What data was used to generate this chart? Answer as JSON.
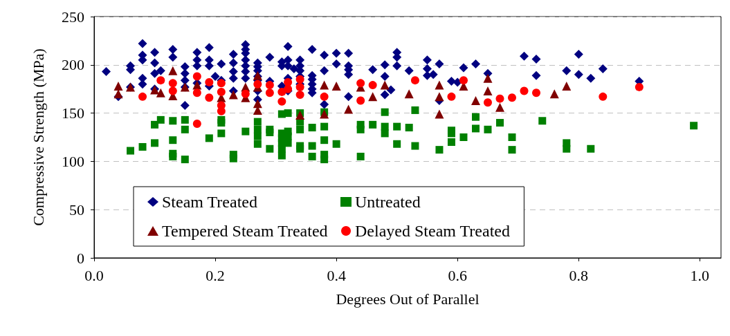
{
  "chart_data": {
    "type": "scatter",
    "xlabel": "Degrees Out of Parallel",
    "ylabel": "Compressive Strength (MPa)",
    "xlim": [
      0,
      1.035
    ],
    "xticks": [
      {
        "value": 0,
        "label": "0.0"
      },
      {
        "value": 0.2,
        "label": "0.2"
      },
      {
        "value": 0.4,
        "label": "0.4"
      },
      {
        "value": 0.6,
        "label": "0.6"
      },
      {
        "value": 0.8,
        "label": "0.8"
      },
      {
        "value": 1.0,
        "label": "1.0"
      }
    ],
    "ylim": [
      0,
      250
    ],
    "yticks": [
      0,
      50,
      100,
      150,
      200,
      250
    ],
    "grid": "y",
    "legend": "bottom",
    "series": [
      {
        "name": "Steam Treated",
        "color": "#000080",
        "marker": "diamond",
        "x": [
          0.02,
          0.04,
          0.06,
          0.06,
          0.06,
          0.08,
          0.08,
          0.08,
          0.08,
          0.08,
          0.1,
          0.1,
          0.1,
          0.1,
          0.11,
          0.13,
          0.13,
          0.15,
          0.15,
          0.15,
          0.15,
          0.15,
          0.17,
          0.17,
          0.17,
          0.17,
          0.19,
          0.19,
          0.19,
          0.19,
          0.2,
          0.21,
          0.21,
          0.23,
          0.23,
          0.23,
          0.23,
          0.23,
          0.25,
          0.25,
          0.25,
          0.25,
          0.25,
          0.25,
          0.25,
          0.27,
          0.27,
          0.27,
          0.27,
          0.27,
          0.27,
          0.27,
          0.29,
          0.29,
          0.31,
          0.31,
          0.31,
          0.32,
          0.32,
          0.32,
          0.32,
          0.32,
          0.33,
          0.34,
          0.34,
          0.34,
          0.34,
          0.34,
          0.36,
          0.36,
          0.36,
          0.36,
          0.36,
          0.36,
          0.38,
          0.38,
          0.38,
          0.4,
          0.4,
          0.42,
          0.42,
          0.42,
          0.42,
          0.42,
          0.46,
          0.48,
          0.48,
          0.48,
          0.49,
          0.5,
          0.5,
          0.5,
          0.52,
          0.55,
          0.55,
          0.55,
          0.56,
          0.57,
          0.57,
          0.59,
          0.6,
          0.61,
          0.63,
          0.65,
          0.71,
          0.73,
          0.73,
          0.78,
          0.8,
          0.8,
          0.82,
          0.84,
          0.9
        ],
        "values": [
          193,
          167,
          199,
          195,
          177,
          222,
          210,
          205,
          186,
          180,
          213,
          202,
          191,
          175,
          194,
          216,
          208,
          198,
          191,
          184,
          177,
          158,
          213,
          205,
          199,
          181,
          218,
          205,
          199,
          178,
          188,
          201,
          184,
          211,
          202,
          193,
          186,
          173,
          221,
          216,
          212,
          205,
          199,
          193,
          186,
          202,
          198,
          194,
          188,
          184,
          173,
          164,
          208,
          183,
          203,
          199,
          178,
          219,
          205,
          199,
          186,
          173,
          196,
          205,
          199,
          194,
          188,
          180,
          216,
          189,
          185,
          180,
          175,
          171,
          210,
          194,
          159,
          212,
          201,
          212,
          199,
          195,
          190,
          167,
          195,
          200,
          188,
          169,
          174,
          213,
          208,
          199,
          194,
          205,
          196,
          189,
          190,
          201,
          163,
          183,
          182,
          197,
          201,
          191,
          209,
          206,
          189,
          194,
          211,
          190,
          186,
          196,
          183
        ]
      },
      {
        "name": "Untreated",
        "color": "#008000",
        "marker": "square",
        "x": [
          0.06,
          0.08,
          0.1,
          0.1,
          0.11,
          0.13,
          0.13,
          0.13,
          0.13,
          0.15,
          0.15,
          0.15,
          0.19,
          0.21,
          0.21,
          0.21,
          0.23,
          0.23,
          0.25,
          0.27,
          0.27,
          0.27,
          0.27,
          0.29,
          0.29,
          0.29,
          0.31,
          0.31,
          0.31,
          0.31,
          0.31,
          0.31,
          0.32,
          0.32,
          0.32,
          0.32,
          0.34,
          0.34,
          0.34,
          0.34,
          0.34,
          0.36,
          0.36,
          0.36,
          0.38,
          0.38,
          0.38,
          0.38,
          0.38,
          0.4,
          0.44,
          0.44,
          0.44,
          0.46,
          0.48,
          0.48,
          0.48,
          0.5,
          0.5,
          0.52,
          0.53,
          0.53,
          0.57,
          0.59,
          0.59,
          0.59,
          0.61,
          0.63,
          0.63,
          0.65,
          0.67,
          0.69,
          0.69,
          0.74,
          0.78,
          0.78,
          0.82,
          0.99
        ],
        "values": [
          111,
          115,
          138,
          119,
          143,
          142,
          122,
          108,
          105,
          143,
          133,
          102,
          124,
          143,
          140,
          129,
          107,
          103,
          131,
          141,
          133,
          126,
          118,
          133,
          130,
          113,
          149,
          129,
          124,
          119,
          113,
          106,
          150,
          131,
          126,
          119,
          150,
          141,
          133,
          116,
          113,
          135,
          116,
          105,
          151,
          136,
          122,
          107,
          102,
          118,
          138,
          133,
          105,
          138,
          151,
          136,
          129,
          136,
          118,
          135,
          153,
          116,
          112,
          132,
          129,
          120,
          125,
          146,
          134,
          133,
          140,
          125,
          112,
          142,
          119,
          113,
          113,
          137
        ]
      },
      {
        "name": "Tempered Steam Treated",
        "color": "#800000",
        "marker": "triangle",
        "x": [
          0.04,
          0.04,
          0.06,
          0.1,
          0.11,
          0.13,
          0.13,
          0.15,
          0.17,
          0.21,
          0.23,
          0.25,
          0.25,
          0.27,
          0.27,
          0.27,
          0.27,
          0.34,
          0.38,
          0.38,
          0.4,
          0.42,
          0.44,
          0.46,
          0.48,
          0.52,
          0.57,
          0.57,
          0.57,
          0.61,
          0.63,
          0.65,
          0.65,
          0.67,
          0.76,
          0.78
        ],
        "values": [
          178,
          170,
          177,
          174,
          171,
          194,
          168,
          177,
          179,
          166,
          169,
          177,
          166,
          189,
          177,
          160,
          153,
          148,
          179,
          149,
          178,
          154,
          177,
          167,
          179,
          170,
          179,
          167,
          149,
          178,
          163,
          186,
          173,
          156,
          170,
          178
        ]
      },
      {
        "name": "Delayed Steam Treated",
        "color": "#ff0000",
        "marker": "circle",
        "x": [
          0.08,
          0.11,
          0.13,
          0.13,
          0.17,
          0.17,
          0.17,
          0.19,
          0.19,
          0.21,
          0.21,
          0.21,
          0.21,
          0.25,
          0.27,
          0.29,
          0.29,
          0.31,
          0.31,
          0.32,
          0.32,
          0.34,
          0.34,
          0.34,
          0.38,
          0.44,
          0.44,
          0.46,
          0.53,
          0.59,
          0.61,
          0.65,
          0.67,
          0.69,
          0.71,
          0.73,
          0.84,
          0.9
        ],
        "values": [
          167,
          184,
          181,
          173,
          188,
          171,
          139,
          182,
          166,
          181,
          172,
          158,
          152,
          170,
          180,
          179,
          171,
          172,
          162,
          182,
          175,
          185,
          177,
          169,
          167,
          181,
          163,
          179,
          184,
          167,
          184,
          161,
          165,
          166,
          173,
          171,
          167,
          177
        ]
      }
    ]
  }
}
